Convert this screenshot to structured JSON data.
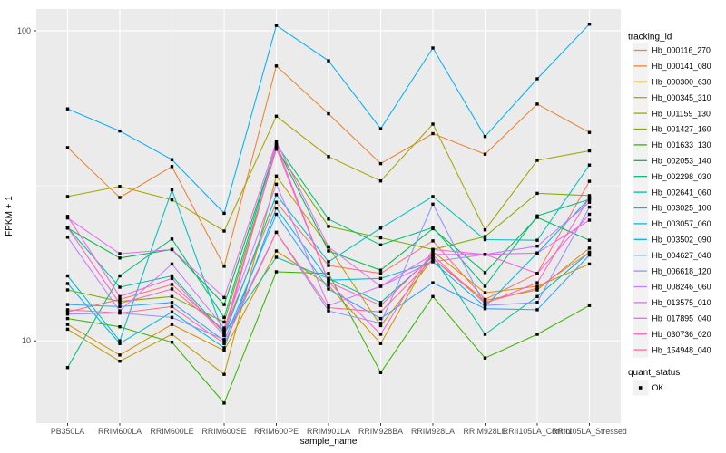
{
  "panel": {
    "bg": "#EBEBEB",
    "grid_color": "#FFFFFF",
    "legend_key_bg": "#F2F2F2",
    "tick_color": "#333333",
    "tick_label_color": "#4D4D4D",
    "marker_color": "#000000"
  },
  "chart_data": {
    "type": "line",
    "title": "",
    "xlabel": "sample_name",
    "ylabel": "FPKM + 1",
    "y_scale": "log10",
    "grid": "on",
    "legend_position": "right",
    "point_shape": "filled-black-square",
    "x_categories": [
      "PB350LA",
      "RRIM600LA",
      "RRIM600LE",
      "RRIM600SE",
      "RRIM600PE",
      "RRIM901LA",
      "RRIM928BA",
      "RRIM928LA",
      "RRIM928LE",
      "RRII105LA_Control",
      "RRII105LA_Stressed"
    ],
    "y_ticks": [
      10,
      100
    ],
    "y_tick_labels": [
      "10",
      "100"
    ],
    "y_minor_ticks": [
      31.6228
    ],
    "ylim": [
      5.43,
      117.5
    ],
    "legend": {
      "title": "tracking_id"
    },
    "legend2": {
      "title": "quant_status",
      "items": [
        "OK"
      ]
    },
    "series": [
      {
        "name": "Hb_000116_270",
        "color": "#F8766D",
        "values": [
          12.4,
          13.6,
          15.2,
          10.8,
          28.0,
          17.5,
          16.5,
          21.0,
          13.6,
          16.5,
          32.7
        ]
      },
      {
        "name": "Hb_000141_080",
        "color": "#EA8331",
        "values": [
          42.0,
          29.0,
          36.5,
          17.4,
          77.0,
          54.0,
          37.3,
          46.6,
          40.0,
          58.0,
          47.0
        ]
      },
      {
        "name": "Hb_000300_630",
        "color": "#D89000",
        "values": [
          11.3,
          9.0,
          11.3,
          9.3,
          19.5,
          15.1,
          9.8,
          19.4,
          14.3,
          15.0,
          17.7
        ]
      },
      {
        "name": "Hb_000345_310",
        "color": "#C09B00",
        "values": [
          10.9,
          8.6,
          10.5,
          7.8,
          34.0,
          20.1,
          11.2,
          18.4,
          13.5,
          14.6,
          19.9
        ]
      },
      {
        "name": "Hb_001159_130",
        "color": "#A3A500",
        "values": [
          29.2,
          31.5,
          28.5,
          22.6,
          53.0,
          39.3,
          32.8,
          50.0,
          22.8,
          38.2,
          41.0
        ]
      },
      {
        "name": "Hb_001427_160",
        "color": "#7CAE00",
        "values": [
          14.6,
          13.4,
          13.9,
          11.5,
          41.5,
          23.4,
          21.5,
          19.7,
          21.7,
          29.9,
          29.4
        ]
      },
      {
        "name": "Hb_001633_130",
        "color": "#39B600",
        "values": [
          11.8,
          11.1,
          9.9,
          6.3,
          16.7,
          16.5,
          7.9,
          13.9,
          8.8,
          10.5,
          13.0
        ]
      },
      {
        "name": "Hb_002053_140",
        "color": "#00BB4E",
        "values": [
          23.1,
          18.5,
          19.7,
          13.1,
          42.5,
          19.5,
          16.9,
          23.0,
          16.6,
          25.0,
          21.1
        ]
      },
      {
        "name": "Hb_002298_030",
        "color": "#00BF7D",
        "values": [
          8.2,
          16.2,
          21.3,
          11.9,
          43.0,
          24.7,
          20.4,
          23.2,
          15.0,
          25.3,
          28.6
        ]
      },
      {
        "name": "Hb_002641_060",
        "color": "#00C1A3",
        "values": [
          23.2,
          14.9,
          16.2,
          10.6,
          18.6,
          15.9,
          13.3,
          18.7,
          10.5,
          13.9,
          19.3
        ]
      },
      {
        "name": "Hb_003025_100",
        "color": "#00BFC4",
        "values": [
          16.2,
          10.0,
          30.7,
          10.4,
          29.6,
          18.0,
          23.1,
          29.2,
          21.2,
          21.1,
          36.9
        ]
      },
      {
        "name": "Hb_003057_060",
        "color": "#00BAE0",
        "values": [
          15.3,
          9.8,
          12.4,
          9.5,
          26.8,
          15.7,
          15.9,
          18.0,
          12.9,
          19.2,
          28.8
        ]
      },
      {
        "name": "Hb_003502_090",
        "color": "#00B0F6",
        "values": [
          56.0,
          47.5,
          38.4,
          25.8,
          104.0,
          80.0,
          48.3,
          88.0,
          45.6,
          70.0,
          105.0
        ]
      },
      {
        "name": "Hb_004627_040",
        "color": "#35A2FF",
        "values": [
          13.1,
          12.9,
          13.3,
          10.0,
          25.6,
          14.7,
          11.8,
          15.4,
          12.7,
          12.6,
          18.9
        ]
      },
      {
        "name": "Hb_006618_120",
        "color": "#9590FF",
        "values": [
          12.2,
          12.3,
          11.9,
          10.1,
          22.4,
          12.5,
          11.4,
          27.6,
          13.0,
          13.3,
          27.0
        ]
      },
      {
        "name": "Hb_008246_060",
        "color": "#C77CFF",
        "values": [
          21.6,
          12.5,
          17.7,
          11.0,
          32.0,
          13.0,
          15.0,
          18.0,
          19.0,
          20.2,
          28.0
        ]
      },
      {
        "name": "Hb_013575_010",
        "color": "#E76BF3",
        "values": [
          24.9,
          19.1,
          19.7,
          13.8,
          43.8,
          20.1,
          15.0,
          19.0,
          19.0,
          19.2,
          24.5
        ]
      },
      {
        "name": "Hb_017895_040",
        "color": "#FA62DB",
        "values": [
          25.2,
          13.9,
          15.9,
          10.4,
          42.9,
          15.5,
          10.5,
          19.7,
          19.0,
          16.5,
          25.6
        ]
      },
      {
        "name": "Hb_030736_020",
        "color": "#FF62BC",
        "values": [
          23.2,
          13.2,
          14.7,
          10.8,
          41.9,
          15.5,
          13.0,
          18.9,
          13.2,
          15.4,
          29.0
        ]
      },
      {
        "name": "Hb_154948_040",
        "color": "#FF6A98",
        "values": [
          12.6,
          12.3,
          12.9,
          9.8,
          22.4,
          12.8,
          12.4,
          18.4,
          13.3,
          14.8,
          19.3
        ]
      }
    ]
  }
}
